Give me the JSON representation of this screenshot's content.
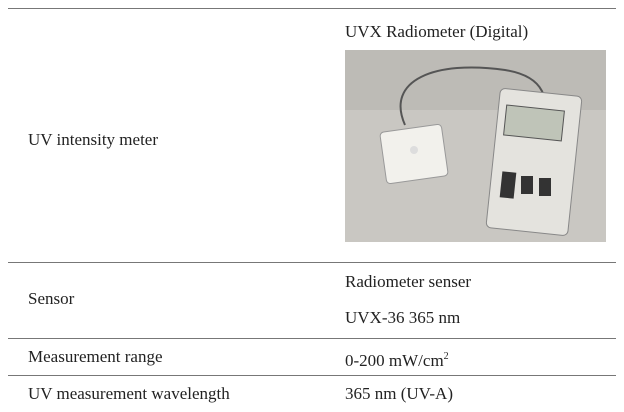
{
  "table": {
    "rows": [
      [
        "UV intensity meter",
        "UVX Radiometer (Digital)"
      ],
      [
        "Sensor",
        [
          "Radiometer senser",
          "UVX-36 365 nm"
        ]
      ],
      [
        "Measurement range",
        {
          "text": "0-200 mW/cm",
          "sup": "2"
        }
      ],
      [
        "UV measurement wavelength",
        "365 nm (UV-A)"
      ]
    ]
  }
}
